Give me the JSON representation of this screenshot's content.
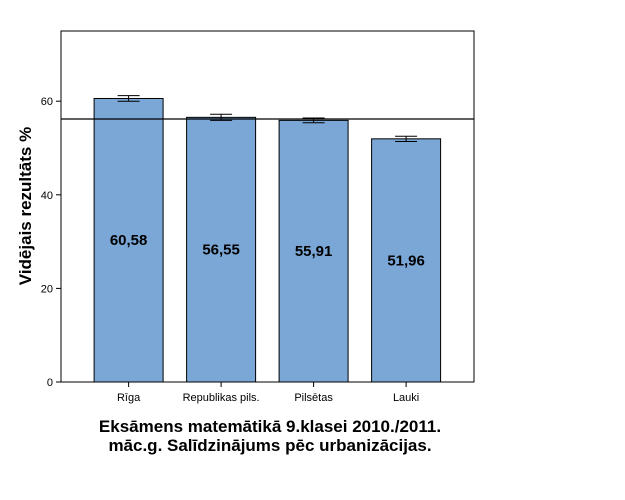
{
  "chart_data": {
    "type": "bar",
    "title_lines": [
      "Eksāmens matemātikā 9.klasei 2010./2011.",
      "māc.g. Salīdzinājums pēc urbanizācijas."
    ],
    "xlabel": "",
    "ylabel": "Vidējais rezultāts %",
    "categories": [
      "Rīga",
      "Republikas pils.",
      "Pilsētas",
      "Lauki"
    ],
    "values": [
      60.58,
      56.55,
      55.91,
      51.96
    ],
    "value_labels": [
      "60,58",
      "56,55",
      "55,91",
      "51,96"
    ],
    "error_bars": [
      [
        60.0,
        61.2
      ],
      [
        55.9,
        57.2
      ],
      [
        55.4,
        56.4
      ],
      [
        51.4,
        52.5
      ]
    ],
    "reference_line": 56.2,
    "ylim": [
      0,
      75
    ],
    "yticks": [
      0,
      20,
      40,
      60
    ],
    "ytick_labels": [
      "0",
      "20",
      "40",
      "60"
    ],
    "grid": false,
    "colors": {
      "bar_fill": "#7aa7d6",
      "bar_stroke": "#000000",
      "axis": "#000000"
    }
  }
}
